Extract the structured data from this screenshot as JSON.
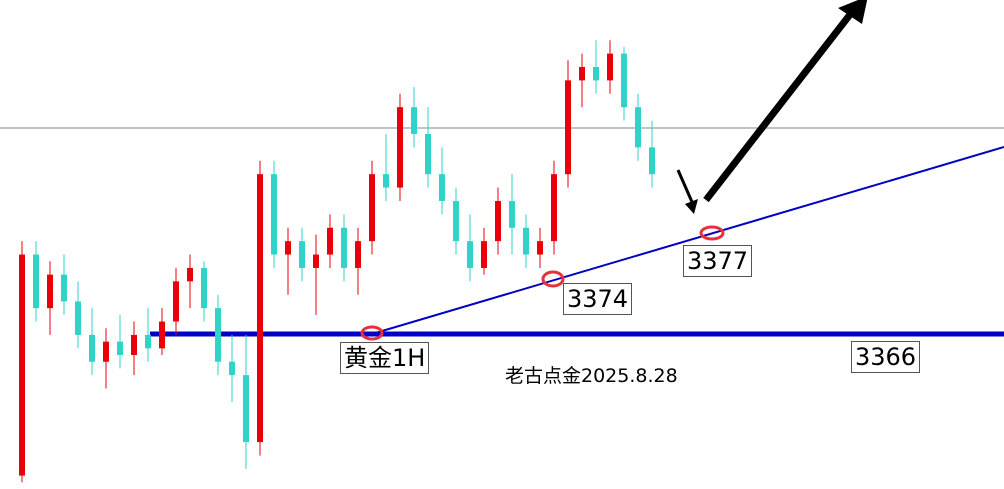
{
  "chart_data": {
    "type": "candlestick",
    "title": "黄金1H",
    "subtitle": "老古点金2025.8.28",
    "ylim": [
      3343,
      3416
    ],
    "up_color": "#e8000b",
    "down_color": "#2fd3c8",
    "open": [
      3345,
      3378,
      3370,
      3375,
      3371,
      3366,
      3362,
      3365,
      3363,
      3366,
      3364,
      3368,
      3374,
      3376,
      3370,
      3362,
      3360,
      3350,
      3390,
      3378,
      3380,
      3376,
      3378,
      3382,
      3376,
      3380,
      3390,
      3388,
      3400,
      3396,
      3390,
      3386,
      3380,
      3376,
      3380,
      3386,
      3382,
      3378,
      3380,
      3390,
      3404,
      3406,
      3404,
      3408,
      3400,
      3394
    ],
    "high": [
      3380,
      3380,
      3377,
      3378,
      3374,
      3370,
      3367,
      3369,
      3368,
      3370,
      3370,
      3376,
      3378,
      3377,
      3372,
      3366,
      3366,
      3392,
      3392,
      3382,
      3382,
      3381,
      3384,
      3384,
      3382,
      3392,
      3396,
      3402,
      3403,
      3400,
      3394,
      3388,
      3384,
      3382,
      3388,
      3390,
      3384,
      3382,
      3392,
      3407,
      3408,
      3410,
      3410,
      3409,
      3402,
      3398
    ],
    "low": [
      3344,
      3368,
      3366,
      3369,
      3364,
      3360,
      3358,
      3361,
      3360,
      3362,
      3363,
      3366,
      3370,
      3368,
      3360,
      3356,
      3346,
      3348,
      3376,
      3372,
      3374,
      3369,
      3376,
      3374,
      3372,
      3378,
      3386,
      3386,
      3394,
      3388,
      3384,
      3378,
      3374,
      3375,
      3378,
      3378,
      3376,
      3376,
      3378,
      3388,
      3400,
      3402,
      3402,
      3398,
      3392,
      3388
    ],
    "close": [
      3378,
      3370,
      3375,
      3371,
      3366,
      3362,
      3365,
      3363,
      3366,
      3364,
      3368,
      3374,
      3376,
      3370,
      3362,
      3360,
      3350,
      3390,
      3378,
      3380,
      3376,
      3378,
      3382,
      3376,
      3380,
      3390,
      3388,
      3400,
      3396,
      3390,
      3386,
      3380,
      3376,
      3380,
      3386,
      3382,
      3378,
      3380,
      3390,
      3404,
      3406,
      3404,
      3408,
      3400,
      3394,
      3390
    ],
    "annotations": [
      "3366",
      "3374",
      "3377"
    ]
  }
}
